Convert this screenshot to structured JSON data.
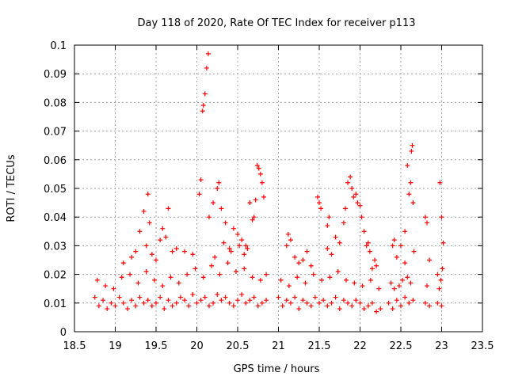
{
  "chart_data": {
    "type": "scatter",
    "title": "Day 118 of 2020, Rate Of TEC Index for receiver p113",
    "xlabel": "GPS time / hours",
    "ylabel": "ROTI / TECUs",
    "xlim": [
      18.5,
      23.5
    ],
    "ylim": [
      0,
      0.1
    ],
    "xticks": [
      18.5,
      19,
      19.5,
      20,
      20.5,
      21,
      21.5,
      22,
      22.5,
      23,
      23.5
    ],
    "xtick_labels": [
      "18.5",
      "19",
      "19.5",
      "20",
      "20.5",
      "21",
      "21.5",
      "22",
      "22.5",
      "23",
      "23.5"
    ],
    "yticks": [
      0,
      0.01,
      0.02,
      0.03,
      0.04,
      0.05,
      0.06,
      0.07,
      0.08,
      0.09,
      0.1
    ],
    "ytick_labels": [
      "0",
      "0.01",
      "0.02",
      "0.03",
      "0.04",
      "0.05",
      "0.06",
      "0.07",
      "0.08",
      "0.09",
      "0.1"
    ],
    "grid": true,
    "marker": "+",
    "series": [
      {
        "name": "ROTI",
        "color": "#ff0000",
        "x": [
          18.75,
          18.8,
          18.85,
          18.9,
          18.95,
          19.0,
          19.05,
          19.1,
          19.15,
          19.2,
          19.25,
          19.3,
          19.35,
          19.4,
          19.45,
          19.5,
          19.55,
          19.6,
          19.65,
          19.7,
          19.75,
          19.8,
          19.85,
          19.9,
          19.95,
          20.0,
          20.05,
          20.1,
          20.15,
          20.2,
          20.25,
          20.3,
          20.35,
          20.4,
          20.45,
          20.5,
          20.55,
          20.6,
          20.65,
          20.7,
          20.75,
          20.8,
          20.85,
          18.78,
          18.88,
          18.98,
          19.08,
          19.18,
          19.28,
          19.38,
          19.48,
          19.58,
          19.68,
          19.78,
          19.88,
          19.98,
          20.08,
          20.18,
          20.28,
          20.38,
          20.48,
          20.58,
          20.68,
          20.78,
          19.3,
          19.35,
          19.4,
          19.38,
          19.42,
          19.62,
          19.65,
          19.58,
          19.7,
          19.55,
          20.05,
          20.07,
          20.08,
          20.1,
          20.12,
          20.14,
          20.03,
          20.15,
          20.2,
          20.25,
          20.27,
          20.3,
          20.35,
          20.45,
          20.5,
          20.55,
          20.6,
          20.7,
          20.72,
          20.74,
          20.76,
          20.78,
          20.8,
          20.82,
          20.65,
          20.68,
          19.1,
          19.2,
          19.25,
          19.45,
          19.5,
          19.75,
          19.85,
          19.95,
          20.22,
          20.33,
          20.4,
          20.42,
          20.52,
          20.58,
          20.62,
          20.85,
          21.0,
          21.05,
          21.1,
          21.15,
          21.2,
          21.25,
          21.3,
          21.35,
          21.4,
          21.45,
          21.5,
          21.55,
          21.6,
          21.65,
          21.7,
          21.75,
          21.8,
          21.85,
          21.9,
          21.95,
          22.0,
          22.05,
          22.1,
          22.15,
          22.2,
          22.25,
          21.03,
          21.13,
          21.23,
          21.33,
          21.43,
          21.53,
          21.63,
          21.73,
          21.83,
          21.93,
          22.03,
          22.13,
          22.23,
          21.1,
          21.12,
          21.15,
          21.5,
          21.48,
          21.52,
          21.6,
          21.62,
          21.7,
          21.8,
          21.82,
          21.85,
          21.88,
          21.9,
          21.92,
          21.95,
          21.97,
          22.0,
          22.02,
          22.05,
          22.08,
          22.1,
          21.6,
          21.65,
          21.75,
          21.3,
          21.35,
          21.4,
          21.2,
          21.25,
          22.12,
          22.15,
          22.18,
          22.2,
          22.35,
          22.4,
          22.45,
          22.5,
          22.55,
          22.6,
          22.65,
          22.8,
          22.85,
          22.95,
          23.0,
          22.38,
          22.42,
          22.48,
          22.52,
          22.58,
          22.62,
          22.82,
          22.97,
          22.4,
          22.42,
          22.45,
          22.6,
          22.62,
          22.58,
          22.63,
          22.64,
          22.65,
          22.55,
          22.5,
          22.8,
          22.82,
          22.85,
          22.98,
          23.0,
          23.02,
          23.01,
          22.99,
          22.95,
          22.66,
          22.55
        ],
        "y": [
          0.012,
          0.009,
          0.011,
          0.008,
          0.01,
          0.009,
          0.012,
          0.01,
          0.008,
          0.011,
          0.009,
          0.012,
          0.01,
          0.011,
          0.009,
          0.01,
          0.012,
          0.008,
          0.011,
          0.009,
          0.01,
          0.012,
          0.011,
          0.009,
          0.013,
          0.01,
          0.011,
          0.012,
          0.009,
          0.01,
          0.013,
          0.011,
          0.012,
          0.01,
          0.009,
          0.011,
          0.013,
          0.01,
          0.011,
          0.012,
          0.009,
          0.01,
          0.011,
          0.018,
          0.016,
          0.015,
          0.019,
          0.02,
          0.017,
          0.021,
          0.018,
          0.016,
          0.019,
          0.017,
          0.02,
          0.022,
          0.019,
          0.023,
          0.02,
          0.024,
          0.021,
          0.022,
          0.019,
          0.018,
          0.035,
          0.042,
          0.048,
          0.03,
          0.038,
          0.033,
          0.043,
          0.036,
          0.028,
          0.032,
          0.053,
          0.077,
          0.079,
          0.083,
          0.092,
          0.097,
          0.048,
          0.04,
          0.045,
          0.05,
          0.052,
          0.043,
          0.038,
          0.036,
          0.034,
          0.032,
          0.03,
          0.04,
          0.046,
          0.058,
          0.057,
          0.055,
          0.052,
          0.047,
          0.045,
          0.039,
          0.024,
          0.026,
          0.028,
          0.027,
          0.025,
          0.029,
          0.028,
          0.027,
          0.026,
          0.031,
          0.029,
          0.028,
          0.03,
          0.027,
          0.029,
          0.02,
          0.012,
          0.009,
          0.011,
          0.01,
          0.012,
          0.008,
          0.011,
          0.01,
          0.009,
          0.012,
          0.01,
          0.011,
          0.009,
          0.01,
          0.012,
          0.008,
          0.011,
          0.01,
          0.009,
          0.011,
          0.01,
          0.008,
          0.009,
          0.01,
          0.007,
          0.008,
          0.018,
          0.016,
          0.019,
          0.017,
          0.02,
          0.018,
          0.019,
          0.021,
          0.018,
          0.017,
          0.016,
          0.018,
          0.015,
          0.03,
          0.034,
          0.032,
          0.045,
          0.047,
          0.043,
          0.037,
          0.04,
          0.033,
          0.038,
          0.043,
          0.052,
          0.054,
          0.05,
          0.047,
          0.048,
          0.045,
          0.044,
          0.04,
          0.035,
          0.03,
          0.031,
          0.029,
          0.027,
          0.031,
          0.025,
          0.028,
          0.023,
          0.026,
          0.024,
          0.028,
          0.022,
          0.025,
          0.023,
          0.01,
          0.008,
          0.011,
          0.009,
          0.012,
          0.01,
          0.011,
          0.01,
          0.009,
          0.01,
          0.009,
          0.017,
          0.015,
          0.016,
          0.018,
          0.019,
          0.017,
          0.016,
          0.015,
          0.03,
          0.032,
          0.026,
          0.048,
          0.052,
          0.058,
          0.063,
          0.065,
          0.045,
          0.035,
          0.03,
          0.04,
          0.038,
          0.025,
          0.052,
          0.04,
          0.031,
          0.022,
          0.018,
          0.02,
          0.028,
          0.024
        ]
      }
    ]
  }
}
